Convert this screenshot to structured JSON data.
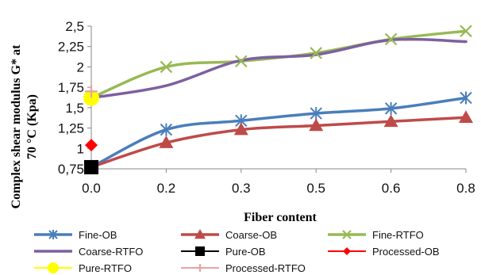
{
  "chart_data": {
    "type": "line",
    "title": "",
    "xlabel": "Fiber content",
    "ylabel_lines": [
      "Complex shear modulus G* at",
      "70 °C (Kpa)"
    ],
    "x_tick_labels": [
      "0.0",
      "0.2",
      "0.3",
      "0.5",
      "0.6",
      "0.8"
    ],
    "y_tick_labels": [
      "0,75",
      "1",
      "1,25",
      "1,5",
      "1,75",
      "2",
      "2,25",
      "2,5"
    ],
    "y_ticks": [
      0.75,
      1,
      1.25,
      1.5,
      1.75,
      2,
      2.25,
      2.5
    ],
    "ylim": [
      0.75,
      2.5
    ],
    "grid": false,
    "legend_position": "bottom",
    "series": [
      {
        "name": "Fine-OB",
        "x": [
          0.0,
          0.2,
          0.3,
          0.5,
          0.6,
          0.8
        ],
        "values": [
          0.77,
          1.23,
          1.34,
          1.43,
          1.49,
          1.62
        ],
        "color": "#4a7ebb",
        "marker": "asterisk"
      },
      {
        "name": "Coarse-OB",
        "x": [
          0.0,
          0.2,
          0.3,
          0.5,
          0.6,
          0.8
        ],
        "values": [
          0.77,
          1.07,
          1.23,
          1.28,
          1.33,
          1.38
        ],
        "color": "#be4b48",
        "marker": "triangle"
      },
      {
        "name": "Fine-RTFO",
        "x": [
          0.0,
          0.2,
          0.3,
          0.5,
          0.6,
          0.8
        ],
        "values": [
          1.62,
          2.0,
          2.07,
          2.17,
          2.34,
          2.44
        ],
        "color": "#98b954",
        "marker": "x"
      },
      {
        "name": "Coarse-RTFO",
        "x": [
          0.0,
          0.2,
          0.3,
          0.5,
          0.6,
          0.8
        ],
        "values": [
          1.62,
          1.77,
          2.08,
          2.15,
          2.33,
          2.31
        ],
        "color": "#7d60a0",
        "marker": "none"
      },
      {
        "name": "Pure-OB",
        "x": [
          0.0
        ],
        "values": [
          0.77
        ],
        "color": "#000000",
        "marker": "square"
      },
      {
        "name": "Processed-OB",
        "x": [
          0.0
        ],
        "values": [
          1.04
        ],
        "color": "#ff0000",
        "marker": "diamond"
      },
      {
        "name": "Pure-RTFO",
        "x": [
          0.0
        ],
        "values": [
          1.62
        ],
        "color": "#ffff00",
        "marker": "circle"
      },
      {
        "name": "Processed-RTFO",
        "x": [
          0.0
        ],
        "values": [
          1.7
        ],
        "color": "#e6a3a2",
        "marker": "plus"
      }
    ]
  }
}
